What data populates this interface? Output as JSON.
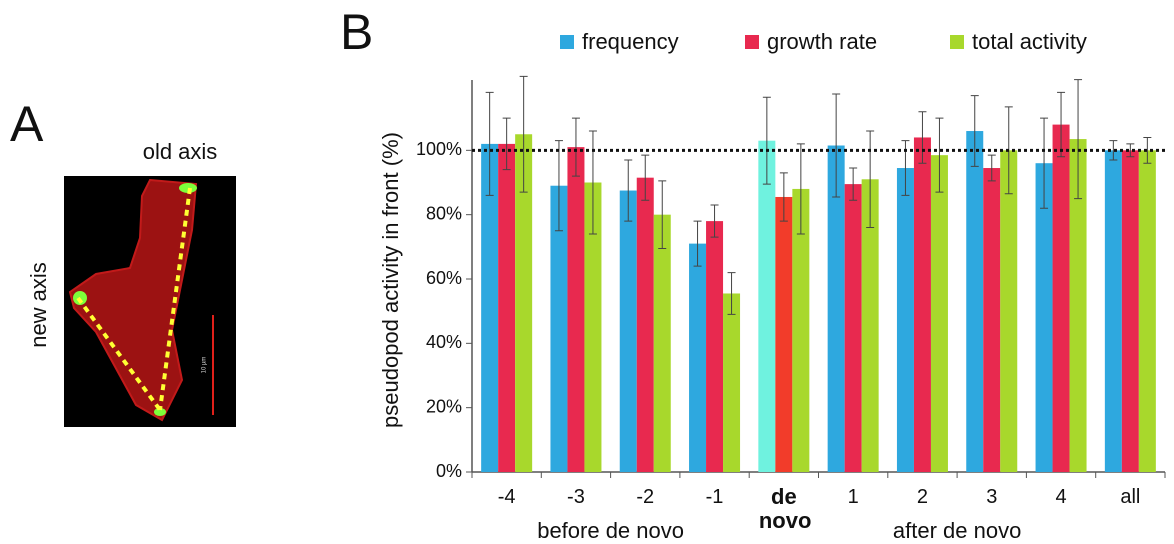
{
  "panel_labels": [
    "A",
    "B"
  ],
  "panel_a": {
    "top_label": "old axis",
    "side_label": "new axis",
    "scale_label": "10 µm"
  },
  "chart_data": {
    "type": "bar",
    "y_label": "pseudopod activity in front (%)",
    "categories": [
      "-4",
      "-3",
      "-2",
      "-1",
      "de novo",
      "1",
      "2",
      "3",
      "4",
      "all"
    ],
    "groups": [
      {
        "label": "before de novo",
        "span": [
          0,
          3
        ]
      },
      {
        "label": "after de novo",
        "span": [
          5,
          8
        ]
      }
    ],
    "highlight_index": 4,
    "series": [
      {
        "name": "frequency",
        "color": "#2ea8df",
        "highlight_color": "#6ff2df",
        "values": [
          102,
          89,
          87.5,
          71,
          103,
          101.5,
          94.5,
          106,
          96,
          100
        ],
        "errors": [
          16,
          14,
          9.5,
          7,
          13.5,
          16,
          8.5,
          11,
          14,
          3
        ]
      },
      {
        "name": "growth rate",
        "color": "#e8294f",
        "highlight_color": "#f23c2a",
        "values": [
          102,
          101,
          91.5,
          78,
          85.5,
          89.5,
          104,
          94.5,
          108,
          100
        ],
        "errors": [
          8,
          9,
          7,
          5,
          7.5,
          5,
          8,
          4,
          10,
          2
        ]
      },
      {
        "name": "total activity",
        "color": "#a8d82c",
        "highlight_color": "#a8d82c",
        "values": [
          105,
          90,
          80,
          55.5,
          88,
          91,
          98.5,
          100,
          103.5,
          100
        ],
        "errors": [
          18,
          16,
          10.5,
          6.5,
          14,
          15,
          11.5,
          13.5,
          18.5,
          4
        ]
      }
    ],
    "ylim": [
      0,
      120
    ],
    "yticks": [
      {
        "value": 0,
        "label": "0%"
      },
      {
        "value": 20,
        "label": "20%"
      },
      {
        "value": 40,
        "label": "40%"
      },
      {
        "value": 60,
        "label": "60%"
      },
      {
        "value": 80,
        "label": "80%"
      },
      {
        "value": 100,
        "label": "100%"
      }
    ],
    "reference_line": 100,
    "grid": false
  }
}
